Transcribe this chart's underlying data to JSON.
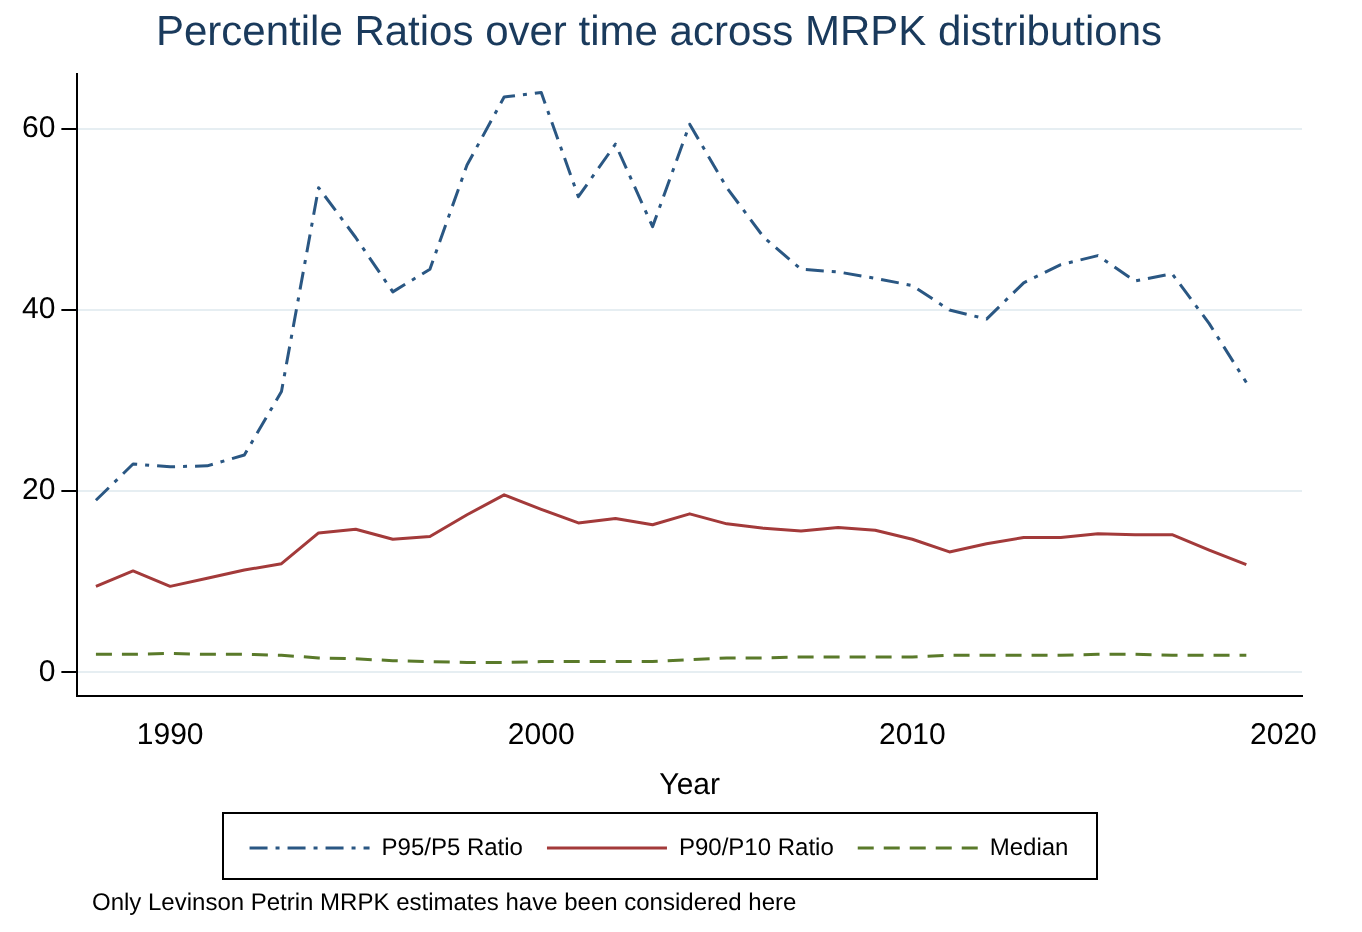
{
  "chart_data": {
    "type": "line",
    "title": "Percentile Ratios over time across MRPK distributions",
    "xlabel": "Year",
    "x": [
      1988,
      1989,
      1990,
      1991,
      1992,
      1993,
      1994,
      1995,
      1996,
      1997,
      1998,
      1999,
      2000,
      2001,
      2002,
      2003,
      2004,
      2005,
      2006,
      2007,
      2008,
      2009,
      2010,
      2011,
      2012,
      2013,
      2014,
      2015,
      2016,
      2017,
      2018,
      2019
    ],
    "series": [
      {
        "name": "P95/P5 Ratio",
        "color": "#2a5783",
        "line_style": "dashdot",
        "values": [
          19,
          23,
          22.7,
          22.8,
          24,
          31,
          53.5,
          48,
          42,
          44.5,
          56,
          63.5,
          64,
          52.5,
          58.3,
          49.2,
          60.5,
          53.5,
          48,
          44.5,
          44.2,
          43.5,
          42.7,
          40,
          39,
          43,
          45,
          46,
          43.2,
          44,
          38.5,
          32
        ]
      },
      {
        "name": "P90/P10 Ratio",
        "color": "#a33a3a",
        "line_style": "solid",
        "values": [
          9.5,
          11.2,
          9.5,
          10.4,
          11.3,
          12,
          15.4,
          15.8,
          14.7,
          15,
          17.4,
          19.6,
          18,
          16.5,
          17,
          16.3,
          17.5,
          16.4,
          15.9,
          15.6,
          16,
          15.7,
          14.7,
          13.3,
          14.2,
          14.9,
          14.9,
          15.3,
          15.2,
          15.2,
          13.5,
          11.9
        ]
      },
      {
        "name": "Median",
        "color": "#5a7a2a",
        "line_style": "dashed",
        "values": [
          2,
          2,
          2.1,
          2,
          2,
          1.9,
          1.6,
          1.5,
          1.3,
          1.2,
          1.1,
          1.1,
          1.2,
          1.2,
          1.2,
          1.2,
          1.4,
          1.6,
          1.6,
          1.7,
          1.7,
          1.7,
          1.7,
          1.9,
          1.9,
          1.9,
          1.9,
          2,
          2,
          1.9,
          1.9,
          1.9
        ]
      }
    ],
    "xlim": [
      1987.5,
      2020.5
    ],
    "xticks": [
      1990,
      2000,
      2010,
      2020
    ],
    "ylim": [
      -2.6,
      66
    ],
    "yticks": [
      0,
      20,
      40,
      60
    ],
    "grid": "y",
    "legend": "bottom",
    "marker": "none",
    "annotations": [
      "Only Levinson Petrin MRPK estimates have been considered here"
    ]
  }
}
